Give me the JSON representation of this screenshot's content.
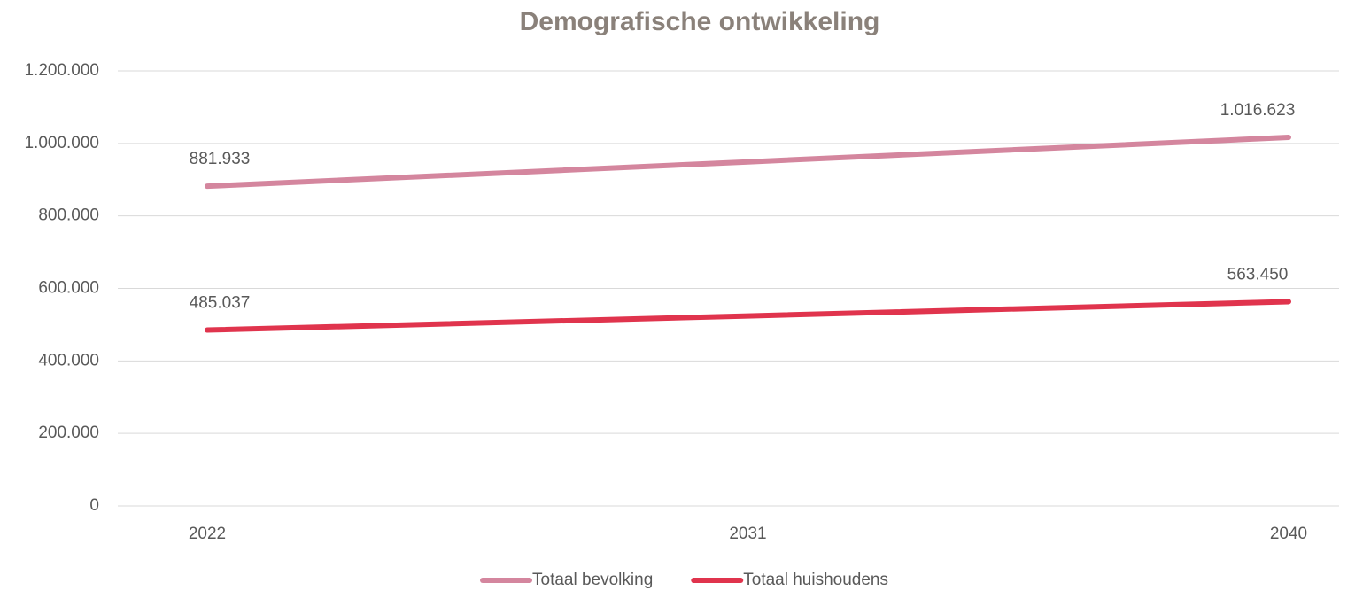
{
  "chart_data": {
    "type": "line",
    "title": "Demografische ontwikkeling",
    "categories": [
      "2022",
      "2031",
      "2040"
    ],
    "series": [
      {
        "name": "Totaal bevolking",
        "color": "#d4869e",
        "values": [
          881933,
          949000,
          1016623
        ],
        "value_labels": [
          "881.933",
          null,
          "1.016.623"
        ]
      },
      {
        "name": "Totaal huishoudens",
        "color": "#e0344d",
        "values": [
          485037,
          524000,
          563450
        ],
        "value_labels": [
          "485.037",
          null,
          "563.450"
        ]
      }
    ],
    "ylim": [
      0,
      1200000
    ],
    "yticks": [
      0,
      {
        "value": 200000,
        "label": "200.000"
      },
      {
        "value": 400000,
        "label": "400.000"
      },
      {
        "value": 600000,
        "label": "600.000"
      },
      {
        "value": 800000,
        "label": "800.000"
      },
      {
        "value": 1000000,
        "label": "1.000.000"
      },
      {
        "value": 1200000,
        "label": "1.200.000"
      }
    ],
    "grid": true,
    "legend": "bottom"
  }
}
